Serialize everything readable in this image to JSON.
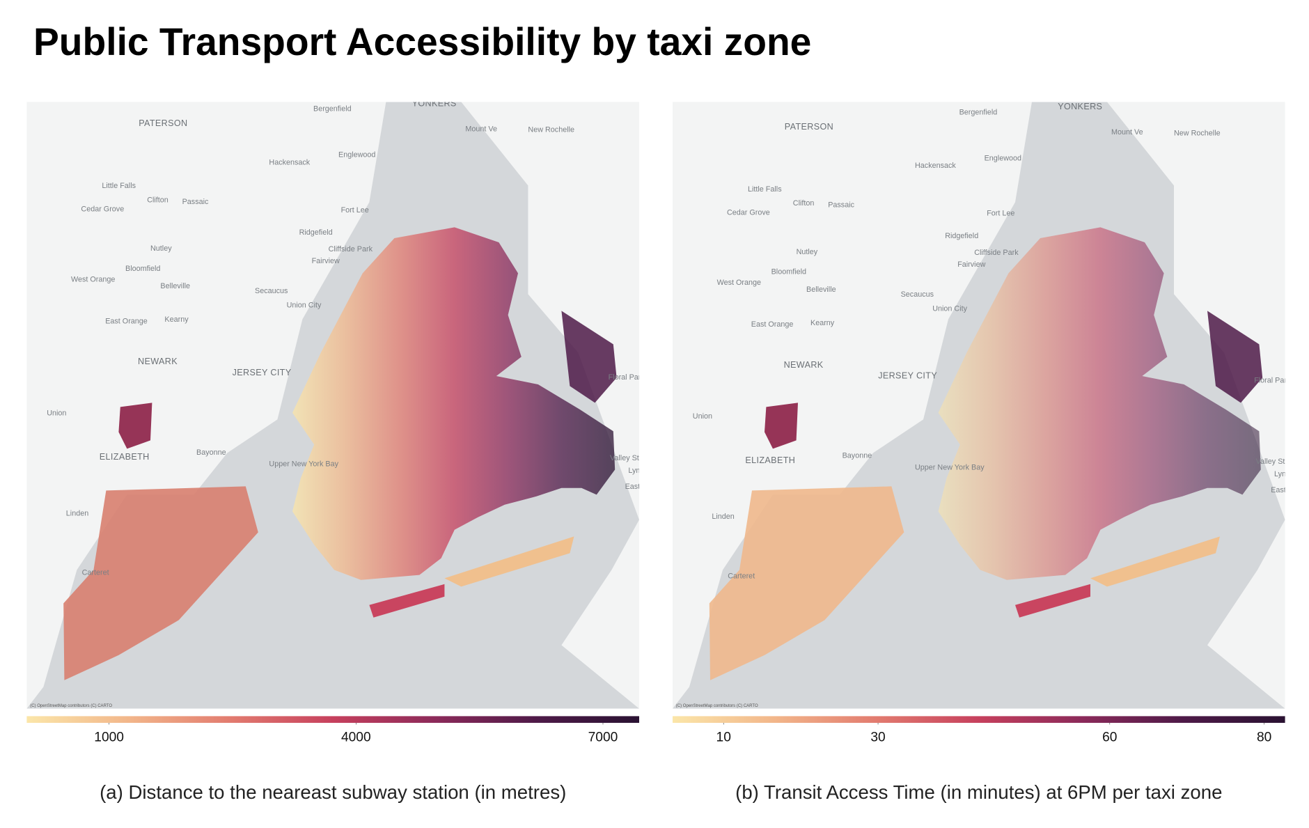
{
  "title": "Public Transport Accessibility by taxi zone",
  "panels": [
    {
      "caption": "(a) Distance to the neareast subway station (in metres)",
      "colorbar": {
        "range": [
          0,
          7440
        ],
        "ticks": [
          1000,
          4000,
          7000
        ],
        "colors": [
          "#fbe6a9",
          "#f2b68a",
          "#e27b6f",
          "#c6405d",
          "#8c2a5a",
          "#4e1a48",
          "#2a1232"
        ]
      }
    },
    {
      "caption": "(b) Transit Access Time (in minutes) at 6PM per taxi zone",
      "colorbar": {
        "range": [
          3.4,
          82.7
        ],
        "ticks": [
          10,
          30,
          60,
          80
        ],
        "colors": [
          "#fbe6a9",
          "#f2b68a",
          "#e27b6f",
          "#c6405d",
          "#8c2a5a",
          "#4e1a48",
          "#2a1232"
        ]
      }
    }
  ],
  "basemap_labels": [
    "YONKERS",
    "Bergenfield",
    "PATERSON",
    "Mount Ve",
    "New Rochelle",
    "Englewood",
    "Hackensack",
    "Little Falls",
    "Clifton",
    "Passaic",
    "Cedar Grove",
    "Fort Lee",
    "Ridgefield",
    "Nutley",
    "Cliffside Park",
    "Fairview",
    "Bloomfield",
    "West Orange",
    "Belleville",
    "Secaucus",
    "Union City",
    "East Orange",
    "Kearny",
    "NEWARK",
    "JERSEY CITY",
    "Floral Park",
    "Union",
    "ELIZABETH",
    "Bayonne",
    "Upper New York Bay",
    "Valley Stream",
    "Lynb",
    "East Ro",
    "Linden",
    "Carteret"
  ],
  "attribution": "(C) OpenStreetMap contributors (C) CARTO"
}
